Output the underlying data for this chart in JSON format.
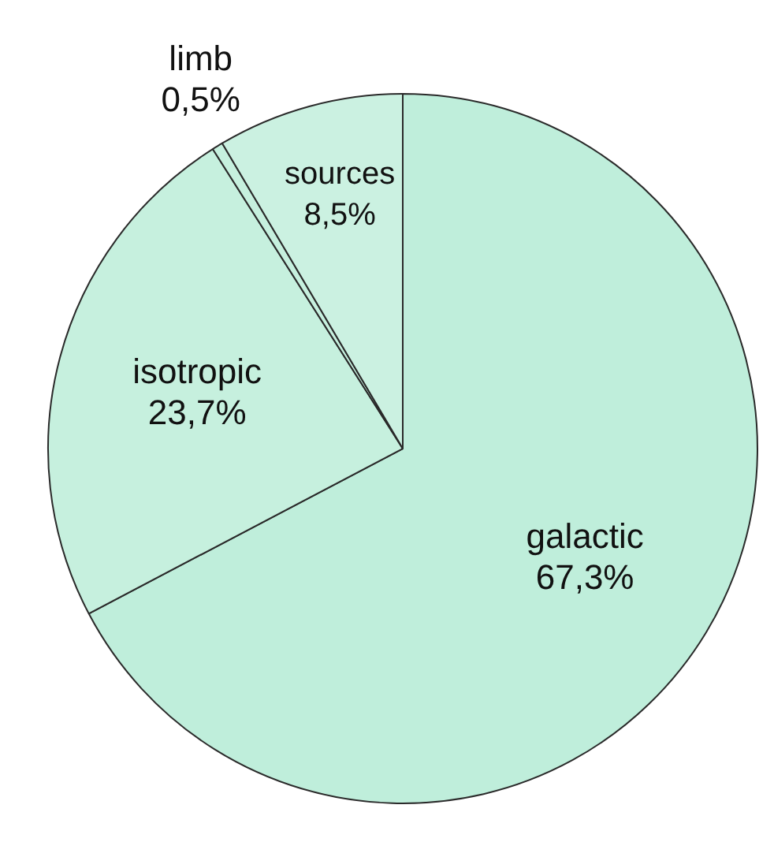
{
  "chart_data": {
    "type": "pie",
    "categories": [
      "galactic",
      "isotropic",
      "limb",
      "sources"
    ],
    "values": [
      67.3,
      23.7,
      0.5,
      8.5
    ],
    "value_labels": [
      "67,3%",
      "23,7%",
      "0,5%",
      "8,5%"
    ],
    "colors": [
      "#bfeedb",
      "#c6f0de",
      "#c6f0de",
      "#cbf1e1"
    ],
    "legend": false
  }
}
